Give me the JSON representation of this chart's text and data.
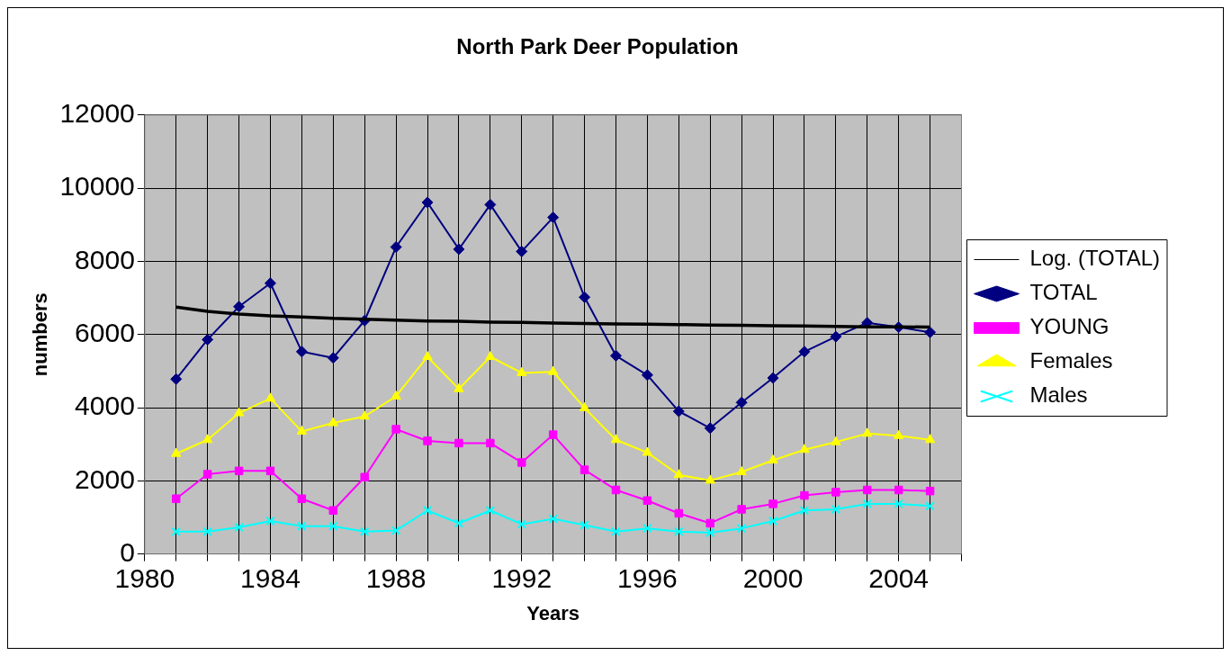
{
  "chart_data": {
    "type": "line",
    "title": "North Park Deer Population",
    "xlabel": "Years",
    "ylabel": "numbers",
    "x": [
      1981,
      1982,
      1983,
      1984,
      1985,
      1986,
      1987,
      1988,
      1989,
      1990,
      1991,
      1992,
      1993,
      1994,
      1995,
      1996,
      1997,
      1998,
      1999,
      2000,
      2001,
      2002,
      2003,
      2004,
      2005
    ],
    "xlim": [
      1980,
      2006
    ],
    "xticks": [
      1980,
      {
        "value": 1981,
        "label": null
      },
      {
        "value": 1982,
        "label": null
      },
      {
        "value": 1983,
        "label": null
      },
      1984,
      {
        "value": 1985,
        "label": null
      },
      {
        "value": 1986,
        "label": null
      },
      {
        "value": 1987,
        "label": null
      },
      1988,
      {
        "value": 1989,
        "label": null
      },
      {
        "value": 1990,
        "label": null
      },
      {
        "value": 1991,
        "label": null
      },
      1992,
      {
        "value": 1993,
        "label": null
      },
      {
        "value": 1994,
        "label": null
      },
      {
        "value": 1995,
        "label": null
      },
      1996,
      {
        "value": 1997,
        "label": null
      },
      {
        "value": 1998,
        "label": null
      },
      {
        "value": 1999,
        "label": null
      },
      2000,
      {
        "value": 2001,
        "label": null
      },
      {
        "value": 2002,
        "label": null
      },
      {
        "value": 2003,
        "label": null
      },
      2004,
      {
        "value": 2005,
        "label": null
      },
      {
        "value": 2006,
        "label": null
      }
    ],
    "ylim": [
      0,
      12000
    ],
    "yticks": [
      0,
      2000,
      4000,
      6000,
      8000,
      10000,
      12000
    ],
    "grid": true,
    "legend": "right",
    "series": [
      {
        "name": "TOTAL",
        "color": "#000080",
        "marker": "diamond",
        "values": [
          4780,
          5860,
          6760,
          7400,
          5530,
          5360,
          6380,
          8390,
          9610,
          8330,
          9550,
          8270,
          9200,
          7020,
          5420,
          4890,
          3900,
          3440,
          4140,
          4810,
          5530,
          5940,
          6320,
          6200,
          6060
        ]
      },
      {
        "name": "YOUNG",
        "color": "#ff00ff",
        "marker": "square",
        "values": [
          1510,
          2180,
          2270,
          2270,
          1510,
          1190,
          2100,
          3410,
          3090,
          3030,
          3030,
          2500,
          3260,
          2300,
          1750,
          1460,
          1110,
          840,
          1220,
          1370,
          1600,
          1690,
          1750,
          1750,
          1720
        ]
      },
      {
        "name": "Females",
        "color": "#ffff00",
        "marker": "triangle",
        "values": [
          2740,
          3120,
          3850,
          4250,
          3350,
          3580,
          3760,
          4310,
          5390,
          4510,
          5390,
          4950,
          4980,
          3990,
          3120,
          2770,
          2160,
          2010,
          2240,
          2560,
          2850,
          3060,
          3290,
          3230,
          3120
        ]
      },
      {
        "name": "Males",
        "color": "#00ffff",
        "marker": "cross",
        "values": [
          610,
          610,
          730,
          900,
          760,
          760,
          610,
          640,
          1190,
          840,
          1190,
          810,
          960,
          790,
          610,
          700,
          610,
          580,
          700,
          900,
          1190,
          1220,
          1370,
          1370,
          1310
        ]
      },
      {
        "name": "Log. (TOTAL)",
        "color": "#000000",
        "marker": "none",
        "values": [
          6750,
          6630,
          6560,
          6510,
          6480,
          6440,
          6420,
          6390,
          6370,
          6360,
          6340,
          6330,
          6310,
          6300,
          6290,
          6280,
          6270,
          6260,
          6250,
          6240,
          6230,
          6220,
          6210,
          6210,
          6200
        ]
      }
    ]
  }
}
